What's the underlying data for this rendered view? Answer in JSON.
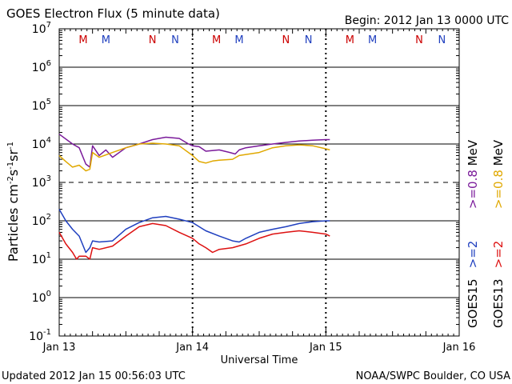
{
  "header": {
    "title": "GOES Electron Flux (5 minute data)",
    "begin": "Begin: 2012 Jan 13 0000 UTC"
  },
  "footer": {
    "updated": "Updated 2012 Jan 15 00:56:03 UTC",
    "credit": "NOAA/SWPC Boulder, CO USA"
  },
  "axes": {
    "xlabel": "Universal Time",
    "ylabel_main": "Particles cm",
    "ylabel_exp1": "-2",
    "ylabel_s": "s",
    "ylabel_exp2": "-1",
    "ylabel_sr": "sr",
    "ylabel_exp3": "-1",
    "y_ticks": [
      {
        "base": "10",
        "exp": "7"
      },
      {
        "base": "10",
        "exp": "6"
      },
      {
        "base": "10",
        "exp": "5"
      },
      {
        "base": "10",
        "exp": "4"
      },
      {
        "base": "10",
        "exp": "3"
      },
      {
        "base": "10",
        "exp": "2"
      },
      {
        "base": "10",
        "exp": "1"
      },
      {
        "base": "10",
        "exp": "0"
      },
      {
        "base": "10",
        "exp": "-1"
      }
    ],
    "x_ticks": [
      "Jan 13",
      "Jan 14",
      "Jan 15",
      "Jan 16"
    ]
  },
  "markers": {
    "labels": [
      "M",
      "M",
      "N",
      "N",
      "M",
      "M",
      "N",
      "N",
      "M",
      "M",
      "N",
      "N"
    ],
    "colors": [
      "#cc0000",
      "#1f3fbf",
      "#cc0000",
      "#1f3fbf",
      "#cc0000",
      "#1f3fbf",
      "#cc0000",
      "#1f3fbf",
      "#cc0000",
      "#1f3fbf",
      "#cc0000",
      "#1f3fbf"
    ]
  },
  "legend": {
    "groups": [
      {
        "satellite": "GOES15",
        "high": ">=0.8",
        "unit": "MeV",
        "low": ">=2",
        "high_color": "#7a1a9a",
        "low_color": "#1f3fbf"
      },
      {
        "satellite": "GOES13",
        "high": ">=0.8",
        "unit": "MeV",
        "low": ">=2",
        "high_color": "#e0a800",
        "low_color": "#dd1111"
      }
    ]
  },
  "chart_data": {
    "type": "line",
    "title": "GOES Electron Flux (5 minute data)",
    "xlabel": "Universal Time",
    "ylabel": "Particles cm-2 s-1 sr-1",
    "y_scale": "log",
    "ylim": [
      0.1,
      10000000
    ],
    "x_unit": "days since 2012 Jan 13 0000 UTC",
    "xlim": [
      0,
      3
    ],
    "x_tick_labels": [
      "Jan 13",
      "Jan 14",
      "Jan 15",
      "Jan 16"
    ],
    "threshold_line": {
      "value": 1000,
      "style": "dashed"
    },
    "grid": "horizontal at each decade",
    "series": [
      {
        "name": "GOES15 >=0.8 MeV",
        "color": "#7a1a9a",
        "x": [
          0.0,
          0.1,
          0.15,
          0.2,
          0.23,
          0.25,
          0.3,
          0.35,
          0.4,
          0.5,
          0.6,
          0.7,
          0.8,
          0.9,
          0.97,
          1.0,
          1.05,
          1.1,
          1.2,
          1.28,
          1.32,
          1.35,
          1.4,
          1.5,
          1.6,
          1.7,
          1.8,
          1.9,
          2.0,
          2.03
        ],
        "values": [
          18000,
          10000,
          8000,
          3000,
          2500,
          9000,
          5000,
          7000,
          4500,
          8000,
          10000,
          13000,
          15000,
          14000,
          10000,
          9000,
          8500,
          6500,
          7000,
          6000,
          5500,
          7000,
          8000,
          9000,
          10000,
          11000,
          12000,
          12500,
          13000,
          13000
        ]
      },
      {
        "name": "GOES13 >=0.8 MeV",
        "color": "#e0a800",
        "x": [
          0.0,
          0.05,
          0.1,
          0.15,
          0.2,
          0.23,
          0.25,
          0.3,
          0.4,
          0.5,
          0.6,
          0.7,
          0.8,
          0.9,
          1.0,
          1.05,
          1.1,
          1.15,
          1.2,
          1.3,
          1.35,
          1.5,
          1.6,
          1.7,
          1.8,
          1.9,
          2.0,
          2.03
        ],
        "values": [
          5000,
          3500,
          2500,
          2800,
          2000,
          2200,
          6000,
          4500,
          6000,
          8000,
          10000,
          10500,
          10000,
          9000,
          5000,
          3500,
          3200,
          3600,
          3800,
          4000,
          5000,
          6000,
          8000,
          9000,
          9500,
          9000,
          7500,
          7000
        ]
      },
      {
        "name": "GOES15 >=2 MeV",
        "color": "#1f3fbf",
        "x": [
          0.0,
          0.05,
          0.1,
          0.15,
          0.2,
          0.23,
          0.25,
          0.3,
          0.4,
          0.5,
          0.6,
          0.7,
          0.8,
          0.9,
          1.0,
          1.1,
          1.2,
          1.3,
          1.35,
          1.4,
          1.5,
          1.6,
          1.7,
          1.8,
          1.9,
          2.0,
          2.03
        ],
        "values": [
          200,
          100,
          60,
          40,
          15,
          20,
          30,
          28,
          30,
          60,
          90,
          120,
          130,
          110,
          90,
          55,
          40,
          30,
          28,
          35,
          50,
          60,
          70,
          85,
          95,
          100,
          100
        ]
      },
      {
        "name": "GOES13 >=2 MeV",
        "color": "#dd1111",
        "x": [
          0.0,
          0.05,
          0.1,
          0.13,
          0.15,
          0.2,
          0.23,
          0.25,
          0.3,
          0.4,
          0.5,
          0.6,
          0.7,
          0.8,
          0.9,
          1.0,
          1.05,
          1.1,
          1.15,
          1.2,
          1.3,
          1.4,
          1.5,
          1.6,
          1.7,
          1.8,
          1.9,
          2.0,
          2.03
        ],
        "values": [
          50,
          25,
          15,
          10,
          12,
          12,
          10,
          20,
          18,
          22,
          40,
          70,
          85,
          75,
          50,
          35,
          25,
          20,
          15,
          18,
          20,
          25,
          35,
          45,
          50,
          55,
          50,
          45,
          40
        ]
      }
    ]
  }
}
